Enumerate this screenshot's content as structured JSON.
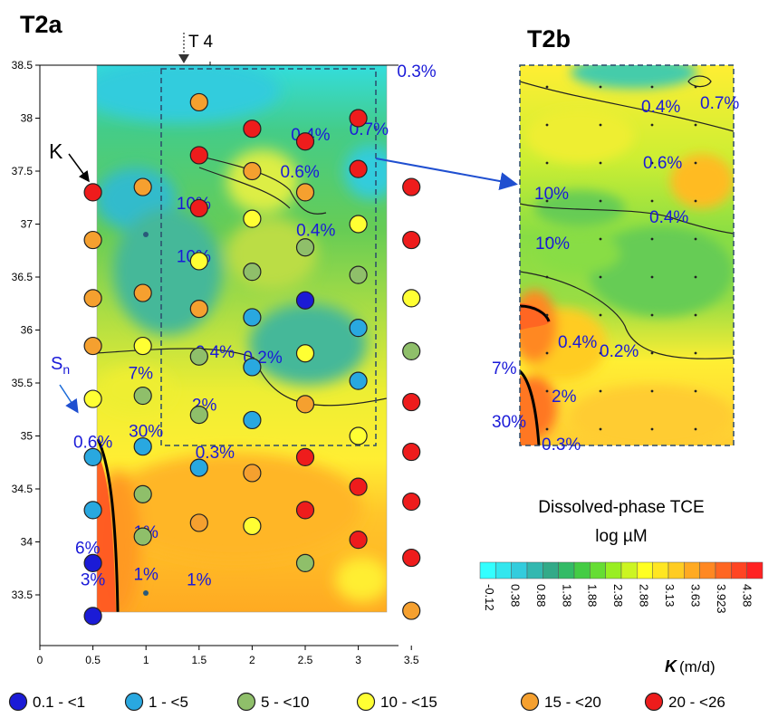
{
  "chart_data": [
    {
      "type": "scatter",
      "panel": "T2a",
      "title": "T2a",
      "marker_label": "T 4",
      "xlim": [
        0,
        3.75
      ],
      "ylim": [
        32.8,
        38.5
      ],
      "x_ticks": [
        "0",
        "0.5",
        "1",
        "1.5",
        "2",
        "2.5",
        "3",
        "3.5"
      ],
      "y_ticks": [
        "33.5",
        "34",
        "34.5",
        "35",
        "35.5",
        "36",
        "36.5",
        "37",
        "37.5",
        "38",
        "38.5"
      ],
      "annotations": [
        "K",
        "Sn"
      ],
      "percent_labels": [
        {
          "text": "0.3%",
          "x": 3.55,
          "y": 38.45
        },
        {
          "text": "0.4%",
          "x": 2.55,
          "y": 37.85
        },
        {
          "text": "0.7%",
          "x": 3.1,
          "y": 37.9
        },
        {
          "text": "0.6%",
          "x": 2.45,
          "y": 37.5
        },
        {
          "text": "10%",
          "x": 1.45,
          "y": 37.2
        },
        {
          "text": "0.4%",
          "x": 2.6,
          "y": 36.95
        },
        {
          "text": "10%",
          "x": 1.45,
          "y": 36.7
        },
        {
          "text": "0.4%",
          "x": 1.65,
          "y": 35.8
        },
        {
          "text": "0.2%",
          "x": 2.1,
          "y": 35.75
        },
        {
          "text": "7%",
          "x": 0.95,
          "y": 35.6
        },
        {
          "text": "2%",
          "x": 1.55,
          "y": 35.3
        },
        {
          "text": "30%",
          "x": 1.0,
          "y": 35.05
        },
        {
          "text": "0.6%",
          "x": 0.5,
          "y": 34.95
        },
        {
          "text": "0.3%",
          "x": 1.65,
          "y": 34.85
        },
        {
          "text": "1%",
          "x": 1.0,
          "y": 34.1
        },
        {
          "text": "6%",
          "x": 0.45,
          "y": 33.95
        },
        {
          "text": "1%",
          "x": 1.0,
          "y": 33.7
        },
        {
          "text": "1%",
          "x": 1.5,
          "y": 33.65
        },
        {
          "text": "3%",
          "x": 0.5,
          "y": 33.65
        }
      ],
      "k_points": [
        {
          "x": 0.5,
          "y": 37.3,
          "class": 5
        },
        {
          "x": 0.5,
          "y": 36.85,
          "class": 4
        },
        {
          "x": 0.5,
          "y": 36.3,
          "class": 4
        },
        {
          "x": 0.5,
          "y": 35.85,
          "class": 4
        },
        {
          "x": 0.5,
          "y": 35.35,
          "class": 3
        },
        {
          "x": 0.5,
          "y": 34.8,
          "class": 1
        },
        {
          "x": 0.5,
          "y": 34.3,
          "class": 1
        },
        {
          "x": 0.5,
          "y": 33.8,
          "class": 0
        },
        {
          "x": 0.5,
          "y": 33.3,
          "class": 0
        },
        {
          "x": 0.97,
          "y": 37.35,
          "class": 4
        },
        {
          "x": 0.97,
          "y": 36.35,
          "class": 4
        },
        {
          "x": 0.97,
          "y": 35.85,
          "class": 3
        },
        {
          "x": 0.97,
          "y": 35.38,
          "class": 2
        },
        {
          "x": 0.97,
          "y": 34.9,
          "class": 1
        },
        {
          "x": 0.97,
          "y": 34.45,
          "class": 2
        },
        {
          "x": 0.97,
          "y": 34.05,
          "class": 2
        },
        {
          "x": 1.5,
          "y": 38.15,
          "class": 4
        },
        {
          "x": 1.5,
          "y": 37.65,
          "class": 5
        },
        {
          "x": 1.5,
          "y": 37.15,
          "class": 5
        },
        {
          "x": 1.5,
          "y": 36.65,
          "class": 3
        },
        {
          "x": 1.5,
          "y": 36.2,
          "class": 4
        },
        {
          "x": 1.5,
          "y": 35.75,
          "class": 2
        },
        {
          "x": 1.5,
          "y": 35.2,
          "class": 2
        },
        {
          "x": 1.5,
          "y": 34.7,
          "class": 1
        },
        {
          "x": 1.5,
          "y": 34.18,
          "class": 4
        },
        {
          "x": 2.0,
          "y": 37.9,
          "class": 5
        },
        {
          "x": 2.0,
          "y": 37.5,
          "class": 4
        },
        {
          "x": 2.0,
          "y": 37.05,
          "class": 3
        },
        {
          "x": 2.0,
          "y": 36.55,
          "class": 2
        },
        {
          "x": 2.0,
          "y": 36.12,
          "class": 1
        },
        {
          "x": 2.0,
          "y": 35.65,
          "class": 1
        },
        {
          "x": 2.0,
          "y": 35.15,
          "class": 1
        },
        {
          "x": 2.0,
          "y": 34.65,
          "class": 4
        },
        {
          "x": 2.0,
          "y": 34.15,
          "class": 3
        },
        {
          "x": 2.5,
          "y": 37.78,
          "class": 5
        },
        {
          "x": 2.5,
          "y": 37.3,
          "class": 4
        },
        {
          "x": 2.5,
          "y": 36.78,
          "class": 2
        },
        {
          "x": 2.5,
          "y": 36.28,
          "class": 0
        },
        {
          "x": 2.5,
          "y": 35.78,
          "class": 3
        },
        {
          "x": 2.5,
          "y": 35.3,
          "class": 4
        },
        {
          "x": 2.5,
          "y": 34.8,
          "class": 5
        },
        {
          "x": 2.5,
          "y": 34.3,
          "class": 5
        },
        {
          "x": 2.5,
          "y": 33.8,
          "class": 2
        },
        {
          "x": 3.0,
          "y": 38.0,
          "class": 5
        },
        {
          "x": 3.0,
          "y": 37.52,
          "class": 5
        },
        {
          "x": 3.0,
          "y": 37.0,
          "class": 3
        },
        {
          "x": 3.0,
          "y": 36.52,
          "class": 2
        },
        {
          "x": 3.0,
          "y": 36.02,
          "class": 1
        },
        {
          "x": 3.0,
          "y": 35.52,
          "class": 1
        },
        {
          "x": 3.0,
          "y": 35.0,
          "class": 3
        },
        {
          "x": 3.0,
          "y": 34.52,
          "class": 5
        },
        {
          "x": 3.0,
          "y": 34.02,
          "class": 5
        },
        {
          "x": 3.5,
          "y": 37.35,
          "class": 5
        },
        {
          "x": 3.5,
          "y": 36.85,
          "class": 5
        },
        {
          "x": 3.5,
          "y": 36.3,
          "class": 3
        },
        {
          "x": 3.5,
          "y": 35.8,
          "class": 2
        },
        {
          "x": 3.5,
          "y": 35.32,
          "class": 5
        },
        {
          "x": 3.5,
          "y": 34.85,
          "class": 5
        },
        {
          "x": 3.5,
          "y": 34.38,
          "class": 5
        },
        {
          "x": 3.5,
          "y": 33.85,
          "class": 5
        },
        {
          "x": 3.5,
          "y": 33.35,
          "class": 4
        }
      ]
    },
    {
      "type": "heatmap",
      "panel": "T2b",
      "title": "T2b",
      "percent_labels": [
        "0.4%",
        "0.7%",
        "0.6%",
        "10%",
        "0.4%",
        "10%",
        "0.4%",
        "0.2%",
        "7%",
        "2%",
        "30%",
        "0.3%"
      ]
    }
  ],
  "colorbar": {
    "title_line1": "Dissolved-phase TCE",
    "title_line2": "log µM",
    "ticks": [
      "-0.12",
      "0.38",
      "0.88",
      "1.38",
      "1.88",
      "2.38",
      "2.88",
      "3.13",
      "3.63",
      "3.923",
      "4.38"
    ],
    "colors": [
      "#33ffff",
      "#33e6ee",
      "#33ccdd",
      "#33b8b0",
      "#33aa88",
      "#33bb66",
      "#44cc44",
      "#66dd33",
      "#99ee22",
      "#ccf522",
      "#ffff22",
      "#ffe622",
      "#ffcc22",
      "#ffaa22",
      "#ff8822",
      "#ff6622",
      "#ff4422",
      "#ff2222"
    ]
  },
  "legend": {
    "title_symbol": "K",
    "title_unit": "(m/d)",
    "items": [
      {
        "label": "0.1 - <1",
        "color": "#1b1bd6"
      },
      {
        "label": "1 - <5",
        "color": "#29a8e0"
      },
      {
        "label": "5 - <10",
        "color": "#8fbf6a"
      },
      {
        "label": "10 - <15",
        "color": "#ffff33"
      },
      {
        "label": "15 - <20",
        "color": "#f5a02f"
      },
      {
        "label": "20 - <26",
        "color": "#ee1c1c"
      }
    ]
  }
}
